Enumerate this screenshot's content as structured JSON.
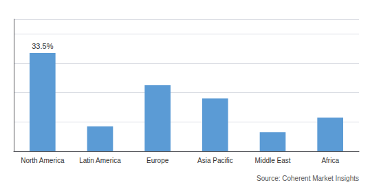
{
  "chart_data": {
    "type": "bar",
    "categories": [
      "North America",
      "Latin America",
      "Europe",
      "Asia Pacific",
      "Middle East",
      "Africa"
    ],
    "values": [
      33.5,
      8.5,
      22.5,
      18.0,
      6.5,
      11.5
    ],
    "color": "#5b9bd5",
    "ylim": [
      0,
      45
    ],
    "yticks": [
      0,
      10,
      20,
      30,
      40
    ],
    "grid": true,
    "tick_labels": "x",
    "annotations": [
      {
        "text": "33.5%",
        "category": "North America",
        "value": 33.5
      },
      {
        "text": "Source: Coherent Market Insights"
      }
    ]
  }
}
